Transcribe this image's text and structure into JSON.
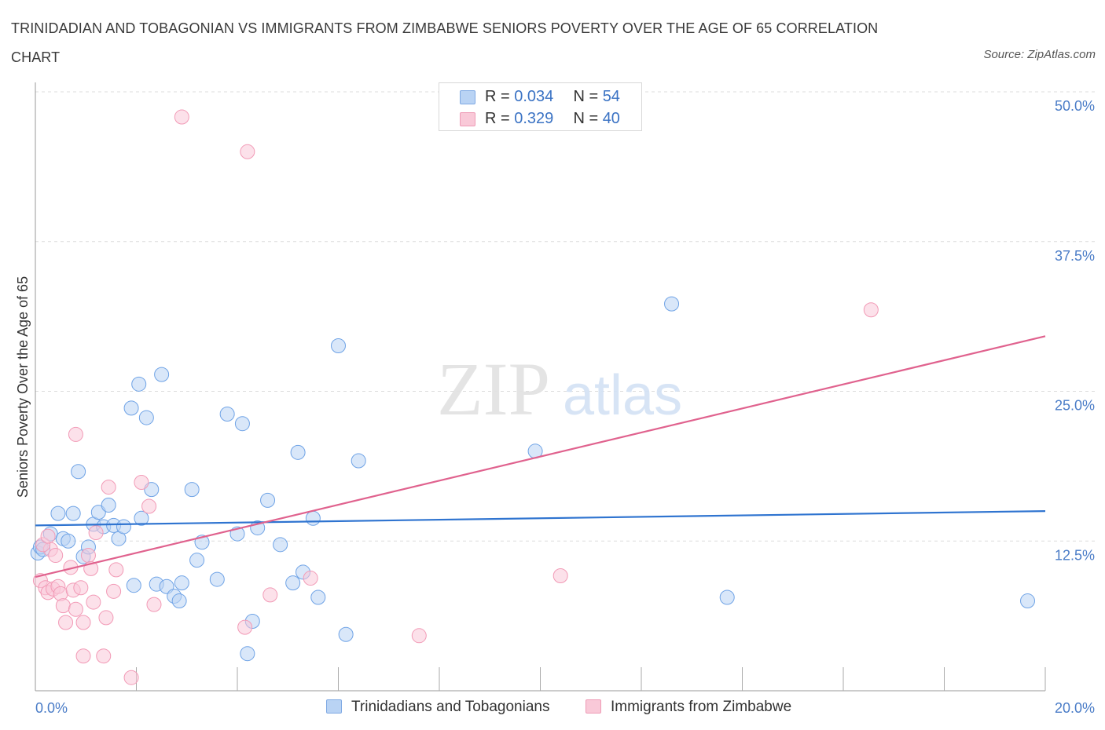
{
  "header": {
    "title": "TRINIDADIAN AND TOBAGONIAN VS IMMIGRANTS FROM ZIMBABWE SENIORS POVERTY OVER THE AGE OF 65 CORRELATION CHART",
    "source": "Source: ZipAtlas.com"
  },
  "watermark": {
    "zip": "ZIP",
    "atlas": "atlas"
  },
  "legend": {
    "rows": [
      {
        "r_label": "R = ",
        "r_value": "0.034",
        "n_label": "N = ",
        "n_value": "54"
      },
      {
        "r_label": "R = ",
        "r_value": "0.329",
        "n_label": "N = ",
        "n_value": "40"
      }
    ]
  },
  "chart_data": {
    "type": "scatter",
    "title": "TRINIDADIAN AND TOBAGONIAN VS IMMIGRANTS FROM ZIMBABWE SENIORS POVERTY OVER THE AGE OF 65 CORRELATION CHART",
    "xlabel": "",
    "ylabel": "Seniors Poverty Over the Age of 65",
    "xlim": [
      0,
      20
    ],
    "ylim": [
      0,
      50
    ],
    "x_ticks": [
      "0.0%",
      "20.0%"
    ],
    "y_ticks": [
      {
        "value": 12.5,
        "label": "12.5%"
      },
      {
        "value": 25.0,
        "label": "25.0%"
      },
      {
        "value": 37.5,
        "label": "37.5%"
      },
      {
        "value": 50.0,
        "label": "50.0%"
      }
    ],
    "grid": true,
    "legend_position": "bottom-center",
    "series": [
      {
        "name": "Trinidadians and Tobagonians",
        "color": "#6fa3e6",
        "line_color": "#2f74d0",
        "trend": [
          [
            0,
            13.8
          ],
          [
            20,
            15.0
          ]
        ],
        "points": [
          [
            0.05,
            11.5
          ],
          [
            0.1,
            12.0
          ],
          [
            0.15,
            11.8
          ],
          [
            0.3,
            13.1
          ],
          [
            0.45,
            14.8
          ],
          [
            0.55,
            12.7
          ],
          [
            0.65,
            12.5
          ],
          [
            0.75,
            14.8
          ],
          [
            0.85,
            18.3
          ],
          [
            0.95,
            11.2
          ],
          [
            1.05,
            12.0
          ],
          [
            1.15,
            13.9
          ],
          [
            1.25,
            14.9
          ],
          [
            1.35,
            13.7
          ],
          [
            1.45,
            15.5
          ],
          [
            1.55,
            13.8
          ],
          [
            1.65,
            12.7
          ],
          [
            1.75,
            13.7
          ],
          [
            1.9,
            23.6
          ],
          [
            1.95,
            8.8
          ],
          [
            2.05,
            25.6
          ],
          [
            2.1,
            14.4
          ],
          [
            2.2,
            22.8
          ],
          [
            2.3,
            16.8
          ],
          [
            2.4,
            8.9
          ],
          [
            2.5,
            26.4
          ],
          [
            2.6,
            8.7
          ],
          [
            2.75,
            7.9
          ],
          [
            2.85,
            7.5
          ],
          [
            2.9,
            9.0
          ],
          [
            3.1,
            16.8
          ],
          [
            3.2,
            10.9
          ],
          [
            3.3,
            12.4
          ],
          [
            3.6,
            9.3
          ],
          [
            3.8,
            23.1
          ],
          [
            4.0,
            13.1
          ],
          [
            4.1,
            22.3
          ],
          [
            4.3,
            5.8
          ],
          [
            4.2,
            3.1
          ],
          [
            4.4,
            13.6
          ],
          [
            4.6,
            15.9
          ],
          [
            4.85,
            12.2
          ],
          [
            5.1,
            9.0
          ],
          [
            5.2,
            19.9
          ],
          [
            5.3,
            9.9
          ],
          [
            5.5,
            14.4
          ],
          [
            5.6,
            7.8
          ],
          [
            6.0,
            28.8
          ],
          [
            6.15,
            4.7
          ],
          [
            6.4,
            19.2
          ],
          [
            9.9,
            20.0
          ],
          [
            12.6,
            32.3
          ],
          [
            13.7,
            7.8
          ],
          [
            19.65,
            7.5
          ]
        ]
      },
      {
        "name": "Immigrants from Zimbabwe",
        "color": "#f29ab6",
        "line_color": "#e0628e",
        "trend": [
          [
            0,
            9.5
          ],
          [
            20,
            29.6
          ]
        ],
        "points": [
          [
            0.1,
            9.2
          ],
          [
            0.2,
            8.6
          ],
          [
            0.25,
            8.2
          ],
          [
            0.3,
            11.8
          ],
          [
            0.35,
            8.5
          ],
          [
            0.4,
            11.3
          ],
          [
            0.45,
            8.7
          ],
          [
            0.5,
            8.1
          ],
          [
            0.55,
            7.1
          ],
          [
            0.6,
            5.7
          ],
          [
            0.7,
            10.3
          ],
          [
            0.75,
            8.4
          ],
          [
            0.8,
            6.8
          ],
          [
            0.9,
            8.6
          ],
          [
            0.95,
            5.7
          ],
          [
            0.95,
            2.9
          ],
          [
            1.05,
            11.3
          ],
          [
            1.1,
            10.2
          ],
          [
            1.15,
            7.4
          ],
          [
            1.2,
            13.2
          ],
          [
            1.35,
            2.9
          ],
          [
            1.4,
            6.1
          ],
          [
            1.45,
            17.0
          ],
          [
            1.55,
            8.3
          ],
          [
            1.6,
            10.1
          ],
          [
            1.9,
            1.1
          ],
          [
            2.1,
            17.4
          ],
          [
            2.25,
            15.4
          ],
          [
            2.35,
            7.2
          ],
          [
            0.8,
            21.4
          ],
          [
            2.9,
            47.9
          ],
          [
            4.2,
            45.0
          ],
          [
            4.15,
            5.3
          ],
          [
            4.65,
            8.0
          ],
          [
            5.45,
            9.4
          ],
          [
            7.6,
            4.6
          ],
          [
            10.4,
            9.6
          ],
          [
            16.55,
            31.8
          ],
          [
            0.15,
            12.2
          ],
          [
            0.25,
            12.9
          ]
        ]
      }
    ]
  }
}
